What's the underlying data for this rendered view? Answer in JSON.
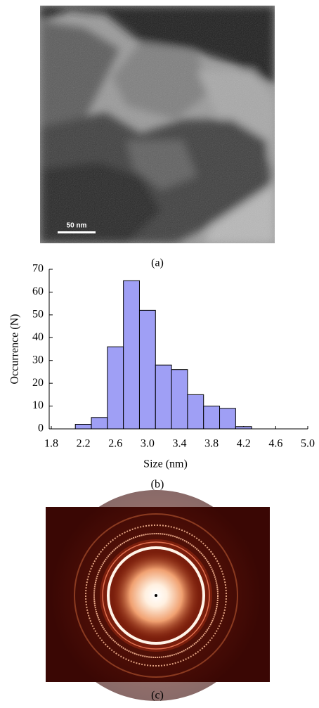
{
  "figure": {
    "panel_labels": [
      "(a)",
      "(b)",
      "(c)"
    ],
    "scale_bar": "50 nm"
  },
  "chart_data": {
    "type": "histogram",
    "xlabel": "Size (nm)",
    "ylabel": "Occurrence (N)",
    "bins": [
      2.1,
      2.3,
      2.5,
      2.7,
      2.9,
      3.1,
      3.3,
      3.5,
      3.7,
      3.9,
      4.1,
      4.3
    ],
    "values": [
      2,
      5,
      36,
      65,
      52,
      28,
      26,
      15,
      10,
      9,
      1
    ],
    "color": "#9f9ff5",
    "xlim": [
      1.8,
      5.0
    ],
    "xticks": [
      1.8,
      2.2,
      2.6,
      {
        "value": 3,
        "label": "3.0"
      },
      3.4,
      3.8,
      4.2,
      4.6,
      {
        "value": 5,
        "label": "5.0"
      }
    ],
    "ylim": [
      0,
      70
    ],
    "yticks": [
      0,
      10,
      20,
      30,
      40,
      50,
      60,
      70
    ]
  }
}
